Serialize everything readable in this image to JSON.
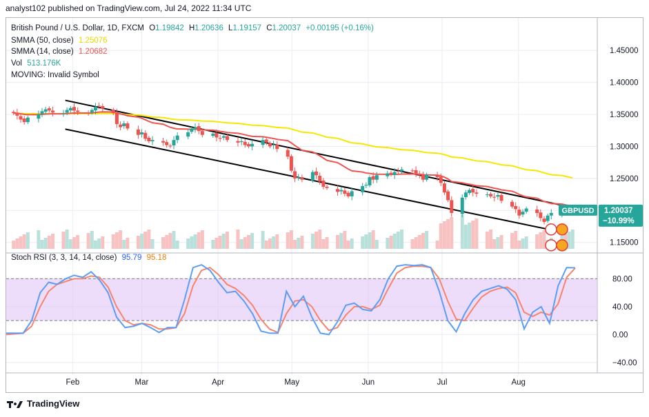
{
  "header": {
    "publisher": "analyst102 published on TradingView.com, Jul 24, 2022 11:34 UTC"
  },
  "legend": {
    "title": "British Pound / U.S. Dollar, 1D, FXCM",
    "ohlc": {
      "o_label": "O",
      "o": "1.19842",
      "h_label": "H",
      "h": "1.20636",
      "l_label": "L",
      "l": "1.19157",
      "c_label": "C",
      "c": "1.20037",
      "change": "+0.00195 (+0.16%)"
    },
    "smma50_label": "SMMA (50, close)",
    "smma50_value": "1.25076",
    "smma14_label": "SMMA (14, close)",
    "smma14_value": "1.20682",
    "vol_label": "Vol",
    "vol_value": "513.176K",
    "moving_label": "MOVING: Invalid Symbol",
    "stoch_label": "Stoch RSI (3, 3, 14, 14, close)",
    "stoch_k": "95.79",
    "stoch_d": "95.18"
  },
  "price_tag": {
    "symbol": "GBPUSD",
    "price": "1.20037",
    "pct": "−10.99%"
  },
  "footer": {
    "brand": "TradingView",
    "logo_icon": "tradingview-logo-icon"
  },
  "colors": {
    "up": "#26a69a",
    "down": "#ef5350",
    "smma50": "#f5e700",
    "smma14": "#ef5350",
    "channel": "#000000",
    "stoch_k": "#5b9cf6",
    "stoch_d": "#f7846a",
    "rsi_band": "#e1c7f7",
    "grid": "#e9ecf2",
    "vol_up": "#b9e1dc",
    "vol_down": "#f7c2c1",
    "tag_bg": "#26a69a"
  },
  "chart_data": {
    "type": "candlestick",
    "title": "British Pound / U.S. Dollar, 1D, FXCM",
    "x_tick_labels": [
      "Feb",
      "Mar",
      "Apr",
      "May",
      "Jun",
      "Jul",
      "Aug"
    ],
    "y_tick_labels": [
      "1.45000",
      "1.40000",
      "1.35000",
      "1.30000",
      "1.25000",
      "1.20000",
      "1.15000"
    ],
    "ylim": [
      1.14,
      1.49
    ],
    "x_range_days": [
      -27,
      213
    ],
    "x_tick_days": [
      0,
      28,
      59,
      89,
      120,
      150,
      181
    ],
    "y_ticks": [
      1.45,
      1.4,
      1.35,
      1.3,
      1.25,
      1.2,
      1.15
    ],
    "grid": true,
    "closes": [
      1.352,
      1.348,
      1.342,
      1.338,
      1.345,
      1.35,
      1.355,
      1.358,
      1.356,
      1.353,
      1.352,
      1.357,
      1.36,
      1.356,
      1.354,
      1.352,
      1.357,
      1.362,
      1.363,
      1.359,
      1.352,
      1.335,
      1.33,
      1.336,
      1.328,
      1.318,
      1.322,
      1.312,
      1.308,
      1.31,
      1.306,
      1.302,
      1.3,
      1.31,
      1.317,
      1.322,
      1.328,
      1.33,
      1.324,
      1.318,
      1.32,
      1.314,
      1.312,
      1.316,
      1.31,
      1.306,
      1.308,
      1.302,
      1.3,
      1.304,
      1.31,
      1.306,
      1.3,
      1.303,
      1.296,
      1.284,
      1.262,
      1.25,
      1.252,
      1.248,
      1.26,
      1.255,
      1.245,
      1.237,
      1.235,
      1.229,
      1.232,
      1.226,
      1.222,
      1.23,
      1.238,
      1.24,
      1.252,
      1.248,
      1.255,
      1.258,
      1.256,
      1.26,
      1.261,
      1.264,
      1.262,
      1.258,
      1.255,
      1.248,
      1.256,
      1.252,
      1.243,
      1.228,
      1.216,
      1.196,
      1.22,
      1.228,
      1.232,
      1.228,
      1.226,
      1.225,
      1.222,
      1.22,
      1.224,
      1.215,
      1.206,
      1.202,
      1.192,
      1.198,
      1.203,
      1.196,
      1.188,
      1.182,
      1.192,
      1.196,
      1.203,
      1.196,
      1.198,
      1.2004
    ],
    "smma14_end": 1.20682,
    "smma50_end": 1.25076,
    "channel_upper": [
      [
        -3,
        1.372
      ],
      [
        200,
        1.207
      ]
    ],
    "channel_lower": [
      [
        -3,
        1.327
      ],
      [
        200,
        1.165
      ]
    ],
    "stoch_rsi": {
      "ylim": [
        -50,
        115
      ],
      "y_ticks": [
        80,
        40,
        0,
        -40
      ],
      "y_tick_labels": [
        "80.00",
        "40.00",
        "0.00",
        "−40.00"
      ],
      "band": [
        20,
        80
      ],
      "k": [
        2,
        2,
        2,
        20,
        60,
        75,
        72,
        80,
        85,
        82,
        90,
        78,
        60,
        25,
        10,
        12,
        16,
        10,
        3,
        10,
        10,
        50,
        96,
        100,
        92,
        75,
        60,
        62,
        48,
        30,
        5,
        2,
        2,
        62,
        40,
        55,
        25,
        2,
        0,
        18,
        42,
        45,
        36,
        34,
        50,
        80,
        98,
        100,
        99,
        100,
        96,
        62,
        20,
        4,
        30,
        50,
        62,
        66,
        70,
        65,
        50,
        8,
        32,
        40,
        16,
        70,
        96,
        95.79
      ],
      "d": [
        0,
        1,
        2,
        12,
        40,
        62,
        72,
        76,
        80,
        80,
        84,
        82,
        68,
        40,
        20,
        14,
        16,
        14,
        8,
        8,
        10,
        30,
        70,
        92,
        96,
        86,
        72,
        66,
        56,
        42,
        22,
        8,
        3,
        30,
        48,
        50,
        40,
        20,
        6,
        10,
        28,
        40,
        40,
        36,
        42,
        66,
        88,
        96,
        98,
        98,
        96,
        80,
        48,
        22,
        20,
        38,
        54,
        62,
        66,
        68,
        60,
        32,
        26,
        32,
        28,
        44,
        82,
        95.18
      ]
    }
  }
}
